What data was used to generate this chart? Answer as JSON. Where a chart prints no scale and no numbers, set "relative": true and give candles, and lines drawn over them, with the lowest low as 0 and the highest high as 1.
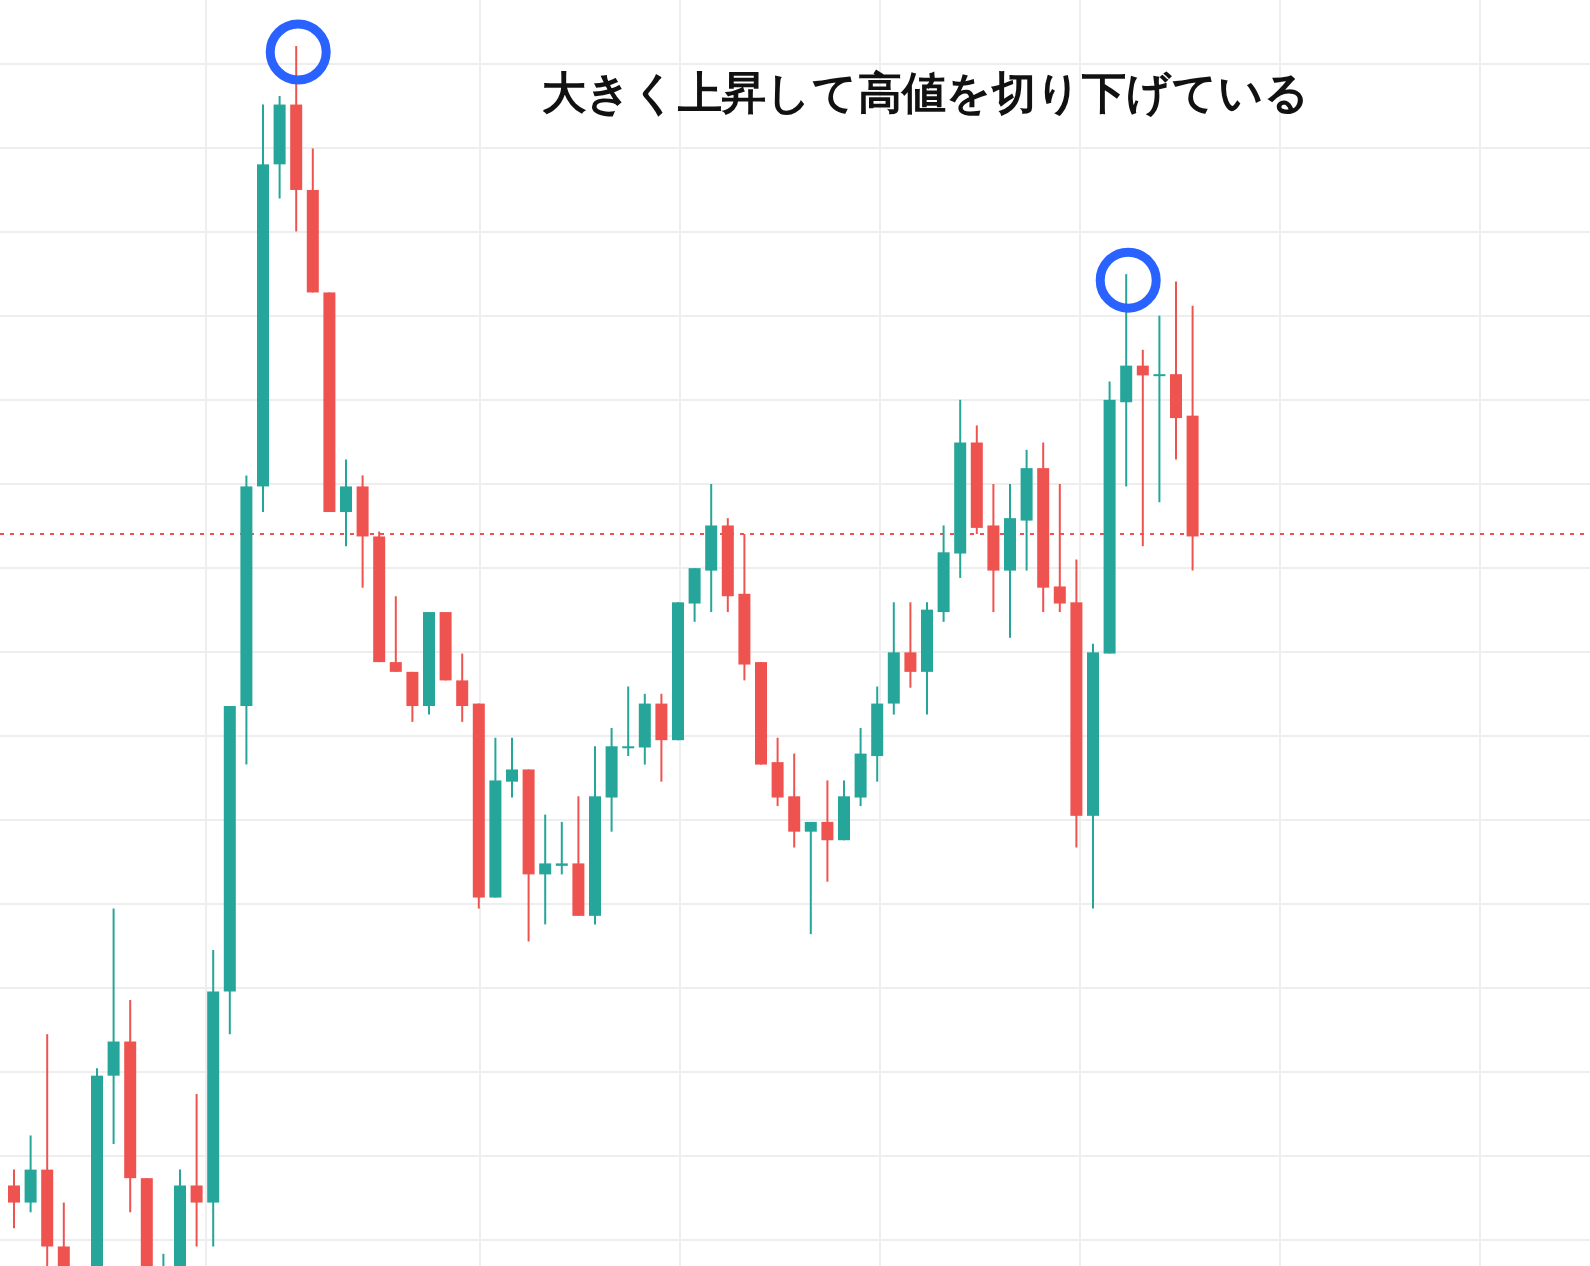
{
  "chart_data": {
    "type": "candlestick",
    "relative": true,
    "grid": true,
    "annotations": [
      "大きく上昇して高値を切り下げている"
    ],
    "categories": [
      null,
      null,
      null,
      null,
      null,
      null,
      null,
      null,
      null,
      null,
      null,
      null,
      null,
      null,
      null,
      null,
      null,
      null,
      null,
      null,
      null,
      null,
      null,
      null,
      null,
      null,
      null,
      null,
      null,
      null,
      null,
      null,
      null,
      null,
      null,
      null,
      null,
      null,
      null,
      null,
      null,
      null,
      null,
      null,
      null,
      null,
      null,
      null,
      null,
      null,
      null,
      null,
      null,
      null,
      null,
      null,
      null,
      null,
      null,
      null,
      null,
      null,
      null,
      null,
      null,
      null,
      null,
      null,
      null,
      null,
      null,
      null
    ],
    "ohlc": [
      [
        0.066,
        0.079,
        0.031,
        0.052
      ],
      [
        0.052,
        0.107,
        0.044,
        0.079
      ],
      [
        0.079,
        0.19,
        0,
        0.016
      ],
      [
        0.016,
        0.052,
        0,
        0
      ],
      null,
      [
        0,
        0.162,
        0,
        0.156
      ],
      [
        0.156,
        0.293,
        0.1,
        0.184
      ],
      [
        0.184,
        0.218,
        0.044,
        0.072
      ],
      [
        0.072,
        0.072,
        0,
        0
      ],
      [
        0,
        0.01,
        0,
        0
      ],
      [
        0,
        0.079,
        0,
        0.066
      ],
      [
        0.066,
        0.141,
        0.016,
        0.052
      ],
      [
        0.052,
        0.259,
        0.016,
        0.225
      ],
      [
        0.225,
        0.459,
        0.19,
        0.459
      ],
      [
        0.459,
        0.648,
        0.411,
        0.639
      ],
      [
        0.639,
        0.952,
        0.618,
        0.903
      ],
      [
        0.903,
        0.959,
        0.875,
        0.952
      ],
      [
        0.952,
        1,
        0.848,
        0.882
      ],
      [
        0.882,
        0.916,
        0.798,
        0.798
      ],
      [
        0.798,
        0.798,
        0.618,
        0.618
      ],
      [
        0.618,
        0.661,
        0.59,
        0.639
      ],
      [
        0.639,
        0.648,
        0.556,
        0.598
      ],
      [
        0.598,
        0.602,
        0.495,
        0.495
      ],
      [
        0.495,
        0.549,
        0.487,
        0.487
      ],
      [
        0.487,
        0.487,
        0.446,
        0.459
      ],
      [
        0.459,
        0.536,
        0.452,
        0.536
      ],
      [
        0.536,
        0.536,
        0.48,
        0.48
      ],
      [
        0.48,
        0.502,
        0.446,
        0.459
      ],
      [
        0.461,
        0.461,
        0.293,
        0.302
      ],
      [
        0.302,
        0.433,
        0.302,
        0.398
      ],
      [
        0.397,
        0.433,
        0.384,
        0.407
      ],
      [
        0.407,
        0.407,
        0.266,
        0.321
      ],
      [
        0.321,
        0.37,
        0.28,
        0.33
      ],
      [
        0.328,
        0.364,
        0.321,
        0.33
      ],
      [
        0.33,
        0.385,
        0.287,
        0.287
      ],
      [
        0.287,
        0.426,
        0.28,
        0.385
      ],
      [
        0.384,
        0.441,
        0.356,
        0.426
      ],
      [
        0.425,
        0.475,
        0.418,
        0.426
      ],
      [
        0.425,
        0.469,
        0.411,
        0.461
      ],
      [
        0.461,
        0.469,
        0.397,
        0.431
      ],
      [
        0.431,
        0.544,
        0.431,
        0.544
      ],
      [
        0.543,
        0.572,
        0.528,
        0.572
      ],
      [
        0.57,
        0.641,
        0.536,
        0.607
      ],
      [
        0.607,
        0.613,
        0.536,
        0.549
      ],
      [
        0.551,
        0.6,
        0.48,
        0.493
      ],
      [
        0.495,
        0.495,
        0.411,
        0.411
      ],
      [
        0.413,
        0.433,
        0.377,
        0.384
      ],
      [
        0.385,
        0.42,
        0.343,
        0.356
      ],
      [
        0.356,
        0.364,
        0.272,
        0.364
      ],
      [
        0.364,
        0.398,
        0.315,
        0.349
      ],
      [
        0.349,
        0.398,
        0.349,
        0.385
      ],
      [
        0.384,
        0.441,
        0.377,
        0.42
      ],
      [
        0.418,
        0.475,
        0.397,
        0.461
      ],
      [
        0.461,
        0.544,
        0.452,
        0.503
      ],
      [
        0.503,
        0.544,
        0.474,
        0.487
      ],
      [
        0.487,
        0.544,
        0.452,
        0.538
      ],
      [
        0.536,
        0.607,
        0.528,
        0.585
      ],
      [
        0.584,
        0.71,
        0.564,
        0.675
      ],
      [
        0.675,
        0.689,
        0.6,
        0.605
      ],
      [
        0.607,
        0.641,
        0.536,
        0.57
      ],
      [
        0.57,
        0.641,
        0.515,
        0.613
      ],
      [
        0.611,
        0.669,
        0.57,
        0.654
      ],
      [
        0.654,
        0.675,
        0.536,
        0.556
      ],
      [
        0.557,
        0.641,
        0.536,
        0.543
      ],
      [
        0.544,
        0.579,
        0.343,
        0.369
      ],
      [
        0.369,
        0.51,
        0.293,
        0.503
      ],
      [
        0.502,
        0.725,
        0.502,
        0.71
      ],
      [
        0.708,
        0.813,
        0.639,
        0.738
      ],
      [
        0.738,
        0.751,
        0.59,
        0.73
      ],
      [
        0.73,
        0.779,
        0.626,
        0.731
      ],
      [
        0.731,
        0.807,
        0.661,
        0.695
      ],
      [
        0.697,
        0.787,
        0.57,
        0.598
      ]
    ],
    "colors": [
      "#ef5350",
      "#26a69a",
      "#ef5350",
      "#ef5350",
      null,
      "#26a69a",
      "#26a69a",
      "#ef5350",
      "#ef5350",
      "#26a69a",
      "#26a69a",
      "#ef5350",
      "#26a69a",
      "#26a69a",
      "#26a69a",
      "#26a69a",
      "#26a69a",
      "#ef5350",
      "#ef5350",
      "#ef5350",
      "#26a69a",
      "#ef5350",
      "#ef5350",
      "#ef5350",
      "#ef5350",
      "#26a69a",
      "#ef5350",
      "#ef5350",
      "#ef5350",
      "#26a69a",
      "#26a69a",
      "#ef5350",
      "#26a69a",
      "#26a69a",
      "#ef5350",
      "#26a69a",
      "#26a69a",
      "#26a69a",
      "#26a69a",
      "#ef5350",
      "#26a69a",
      "#26a69a",
      "#26a69a",
      "#ef5350",
      "#ef5350",
      "#ef5350",
      "#ef5350",
      "#ef5350",
      "#26a69a",
      "#ef5350",
      "#26a69a",
      "#26a69a",
      "#26a69a",
      "#26a69a",
      "#ef5350",
      "#26a69a",
      "#26a69a",
      "#26a69a",
      "#ef5350",
      "#ef5350",
      "#26a69a",
      "#26a69a",
      "#ef5350",
      "#ef5350",
      "#ef5350",
      "#26a69a",
      "#26a69a",
      "#26a69a",
      "#ef5350",
      "#26a69a",
      "#ef5350",
      "#ef5350"
    ],
    "ref_lines": [
      {
        "axis": "y",
        "value": 0.6,
        "color": "#ef5350",
        "line_style": "dotted"
      }
    ]
  }
}
